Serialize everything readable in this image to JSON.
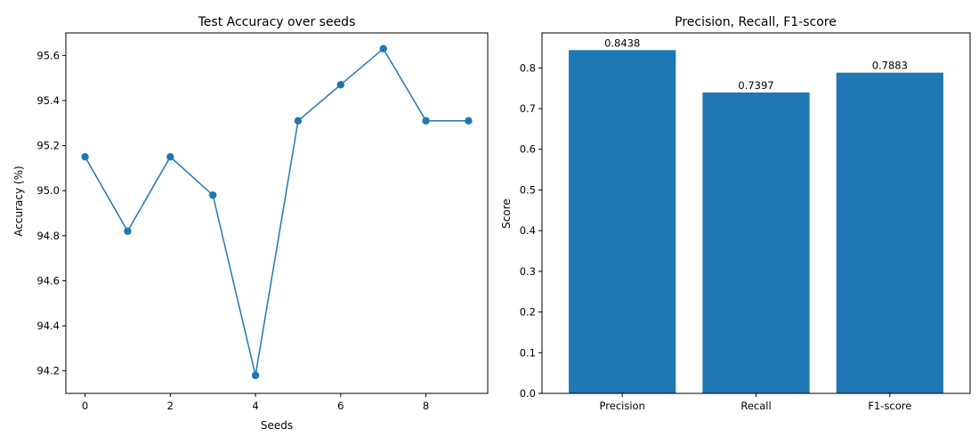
{
  "chart_data": [
    {
      "type": "line",
      "title": "Test Accuracy over seeds",
      "xlabel": "Seeds",
      "ylabel": "Accuracy (%)",
      "x": [
        0,
        1,
        2,
        3,
        4,
        5,
        6,
        7,
        8,
        9
      ],
      "series": [
        {
          "values": [
            95.15,
            94.82,
            95.15,
            94.98,
            94.18,
            95.31,
            95.47,
            95.63,
            95.31,
            95.31
          ],
          "color": "#1f77b4"
        }
      ],
      "xlim": [
        -0.45,
        9.45
      ],
      "ylim": [
        94.1,
        95.7
      ],
      "xticks": [
        0,
        2,
        4,
        6,
        8
      ],
      "xtick_labels": [
        "0",
        "2",
        "4",
        "6",
        "8"
      ],
      "yticks": [
        94.2,
        94.4,
        94.6,
        94.8,
        95.0,
        95.2,
        95.4,
        95.6
      ],
      "ytick_labels": [
        "94.2",
        "94.4",
        "94.6",
        "94.8",
        "95.0",
        "95.2",
        "95.4",
        "95.6"
      ],
      "grid": false,
      "markers": true
    },
    {
      "type": "bar",
      "title": "Precision, Recall, F1-score",
      "xlabel": "",
      "ylabel": "Score",
      "categories": [
        "Precision",
        "Recall",
        "F1-score"
      ],
      "values": [
        0.8438,
        0.7397,
        0.7883
      ],
      "data_labels": [
        "0.8438",
        "0.7397",
        "0.7883"
      ],
      "color": "#1f77b4",
      "ylim": [
        0,
        0.886
      ],
      "yticks": [
        0.0,
        0.1,
        0.2,
        0.3,
        0.4,
        0.5,
        0.6,
        0.7,
        0.8
      ],
      "ytick_labels": [
        "0.0",
        "0.1",
        "0.2",
        "0.3",
        "0.4",
        "0.5",
        "0.6",
        "0.7",
        "0.8"
      ],
      "grid": false
    }
  ]
}
